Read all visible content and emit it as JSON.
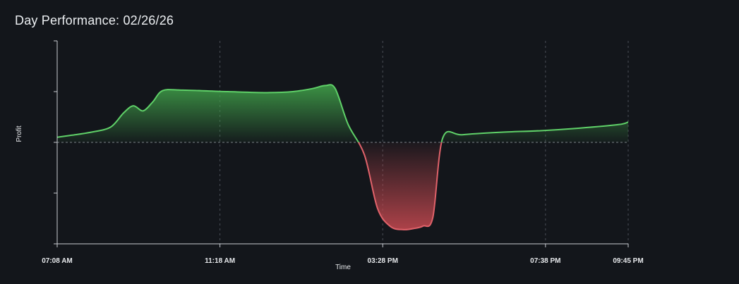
{
  "chart_title": "Day Performance: 02/26/26",
  "chart_data": {
    "type": "area",
    "title": "Day Performance: 02/26/26",
    "xlabel": "Time",
    "ylabel": "Profit",
    "x_ticks": [
      "07:08 AM",
      "11:18 AM",
      "03:28 PM",
      "07:38 PM",
      "09:45 PM"
    ],
    "x_range": [
      "07:08 AM",
      "09:45 PM"
    ],
    "y_range": [
      -2,
      2
    ],
    "y_ticks": [
      -2,
      -1,
      0,
      1,
      2
    ],
    "grid": "vertical dashed at x ticks",
    "baseline": 0,
    "colors": {
      "positive_line": "#5fd068",
      "positive_fill": "#3e9a47",
      "negative_line": "#e0626a",
      "negative_fill": "#b8454c",
      "background": "#13161b",
      "axis": "#c8ccd2",
      "grid": "#4a4f57"
    },
    "series": [
      {
        "x": [
          "07:08",
          "07:30",
          "08:00",
          "08:30",
          "08:50",
          "09:05",
          "09:20",
          "09:35",
          "09:50",
          "10:20",
          "11:30",
          "12:30",
          "13:10",
          "13:40",
          "14:00",
          "14:15",
          "14:35",
          "15:00",
          "15:20",
          "15:40",
          "16:00",
          "16:15",
          "16:30",
          "16:45",
          "17:00",
          "17:30",
          "18:30",
          "19:30",
          "20:30",
          "21:30",
          "21:45"
        ],
        "y": [
          0.1,
          0.14,
          0.2,
          0.3,
          0.58,
          0.72,
          0.62,
          0.8,
          1.02,
          1.03,
          1.0,
          0.98,
          1.0,
          1.06,
          1.12,
          1.06,
          0.35,
          -0.25,
          -1.3,
          -1.66,
          -1.72,
          -1.7,
          -1.65,
          -1.48,
          0.08,
          0.15,
          0.2,
          0.23,
          0.28,
          0.35,
          0.4
        ]
      }
    ]
  }
}
